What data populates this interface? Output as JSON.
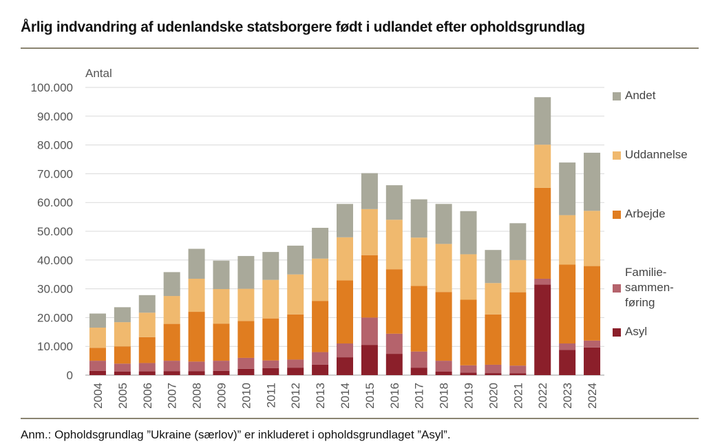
{
  "chart_data": {
    "type": "bar",
    "stacked": true,
    "title": "Årlig indvandring af udenlandske statsborgere født i udlandet efter opholdsgrundlag",
    "ylabel": "Antal",
    "xlabel": "",
    "ylim": [
      0,
      100000
    ],
    "yticks": [
      0,
      10000,
      20000,
      30000,
      40000,
      50000,
      60000,
      70000,
      80000,
      90000,
      100000
    ],
    "ytick_labels": [
      "0",
      "10.000",
      "20.000",
      "30.000",
      "40.000",
      "50.000",
      "60.000",
      "70.000",
      "80.000",
      "90.000",
      "100.000"
    ],
    "grid": true,
    "legend_position": "right",
    "categories": [
      "2004",
      "2005",
      "2006",
      "2007",
      "2008",
      "2009",
      "2010",
      "2011",
      "2012",
      "2013",
      "2014",
      "2015",
      "2016",
      "2017",
      "2018",
      "2019",
      "2020",
      "2021",
      "2022",
      "2023",
      "2024"
    ],
    "series": [
      {
        "name": "Asyl",
        "legend_lines": [
          "Asyl"
        ],
        "color": "#8b1f2a",
        "values": [
          1500,
          1200,
          1300,
          1400,
          1400,
          1500,
          2200,
          2400,
          2600,
          3600,
          6200,
          10500,
          7400,
          2600,
          1200,
          900,
          700,
          600,
          31500,
          8800,
          9600
        ]
      },
      {
        "name": "Familiesammenføring",
        "legend_lines": [
          "Familie-",
          "sammen-",
          "føring"
        ],
        "color": "#b5636c",
        "values": [
          3500,
          2800,
          2900,
          3600,
          3300,
          3500,
          3800,
          2700,
          2800,
          4400,
          4800,
          9500,
          7000,
          5600,
          3800,
          2500,
          2900,
          2700,
          2000,
          2200,
          2400
        ]
      },
      {
        "name": "Arbejde",
        "legend_lines": [
          "Arbejde"
        ],
        "color": "#e07d20",
        "values": [
          4500,
          6000,
          9000,
          12800,
          17300,
          12900,
          12800,
          14600,
          15700,
          17800,
          21900,
          21700,
          22400,
          22800,
          23900,
          22800,
          17500,
          25500,
          31600,
          27400,
          25900
        ]
      },
      {
        "name": "Uddannelse",
        "legend_lines": [
          "Uddannelse"
        ],
        "color": "#f0b96e",
        "values": [
          7000,
          8400,
          8500,
          9700,
          11500,
          12000,
          11200,
          13400,
          13900,
          14700,
          15000,
          16000,
          17200,
          16800,
          16700,
          15800,
          10900,
          11200,
          15000,
          17200,
          19200
        ]
      },
      {
        "name": "Andet",
        "legend_lines": [
          "Andet"
        ],
        "color": "#a9a99a",
        "values": [
          4900,
          5200,
          6100,
          8300,
          10400,
          9900,
          11400,
          9700,
          10000,
          10700,
          11600,
          12500,
          12000,
          13300,
          13900,
          15000,
          11500,
          12800,
          16500,
          18300,
          20200
        ]
      }
    ]
  },
  "footnote": "Anm.: Opholdsgrundlag ”Ukraine (særlov)” er inkluderet i opholdsgrundlaget ”Asyl”."
}
